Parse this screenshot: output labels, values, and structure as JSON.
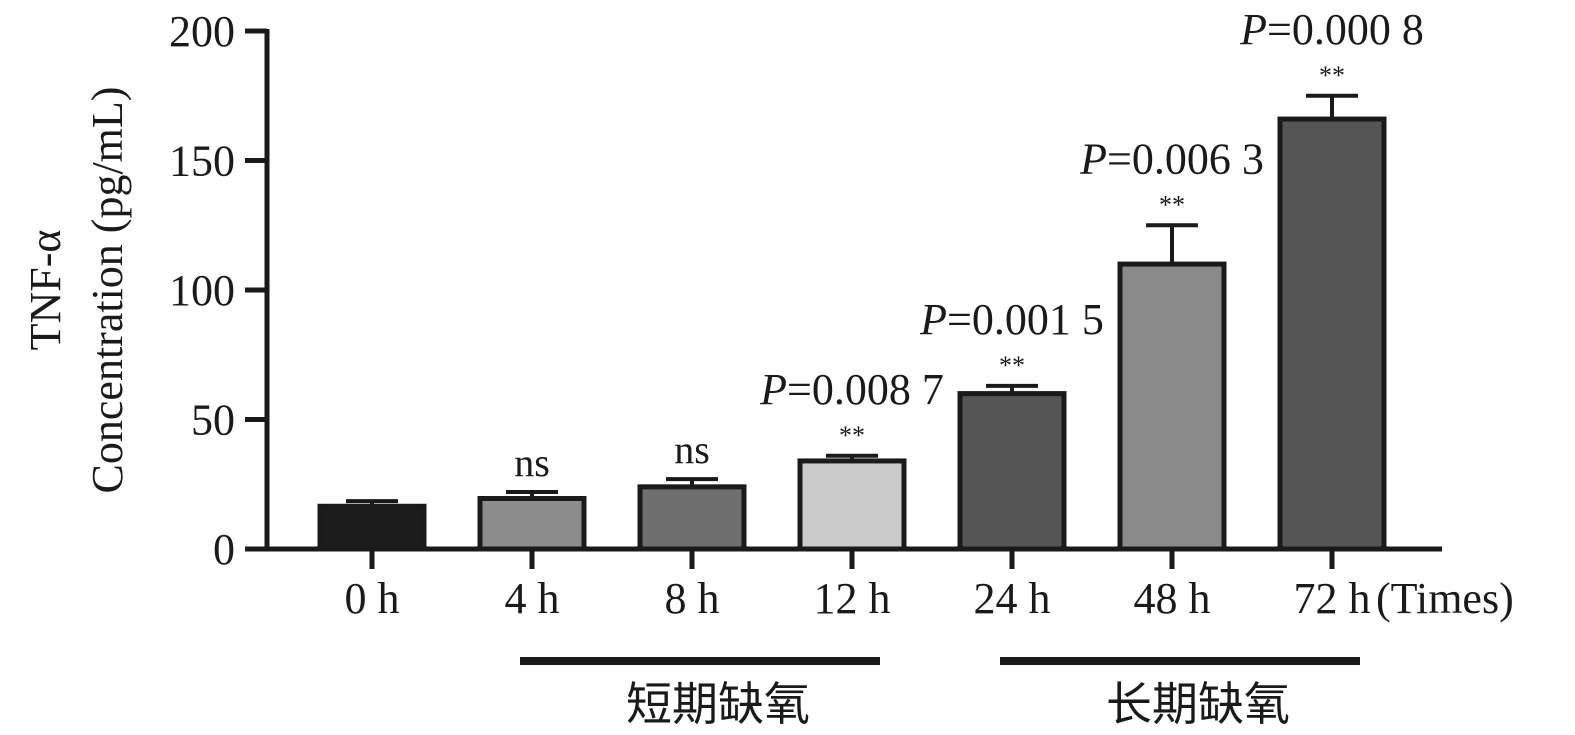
{
  "chart_data": {
    "type": "bar",
    "ylabel_line1": "TNF-α",
    "ylabel_line2": "Concentration (pg/mL)",
    "xlabel": "(Times)",
    "ylim": [
      0,
      200
    ],
    "yticks": [
      0,
      50,
      100,
      150,
      200
    ],
    "categories": [
      "0 h",
      "4 h",
      "8 h",
      "12 h",
      "24 h",
      "48 h",
      "72 h"
    ],
    "values": [
      16.5,
      19.5,
      24,
      34,
      60,
      110,
      166
    ],
    "errors": [
      2,
      2.5,
      3,
      2,
      3,
      15,
      9
    ],
    "colors": [
      "#1c1c1c",
      "#8c8c8c",
      "#6e6e6e",
      "#cbcbcb",
      "#555555",
      "#8a8a8a",
      "#555555"
    ],
    "significance": [
      "",
      "ns",
      "ns",
      "**",
      "**",
      "**",
      "**"
    ],
    "p_values": [
      {
        "prefix": "",
        "value": ""
      },
      {
        "prefix": "",
        "value": ""
      },
      {
        "prefix": "",
        "value": ""
      },
      {
        "prefix": "P",
        "value": "=0.008 7"
      },
      {
        "prefix": "P",
        "value": "=0.001 5"
      },
      {
        "prefix": "P",
        "value": "=0.006 3"
      },
      {
        "prefix": "P",
        "value": "=0.000 8"
      }
    ],
    "groups": [
      {
        "label": "短期缺氧",
        "from": 1,
        "to": 3
      },
      {
        "label": "长期缺氧",
        "from": 4,
        "to": 6
      }
    ]
  }
}
